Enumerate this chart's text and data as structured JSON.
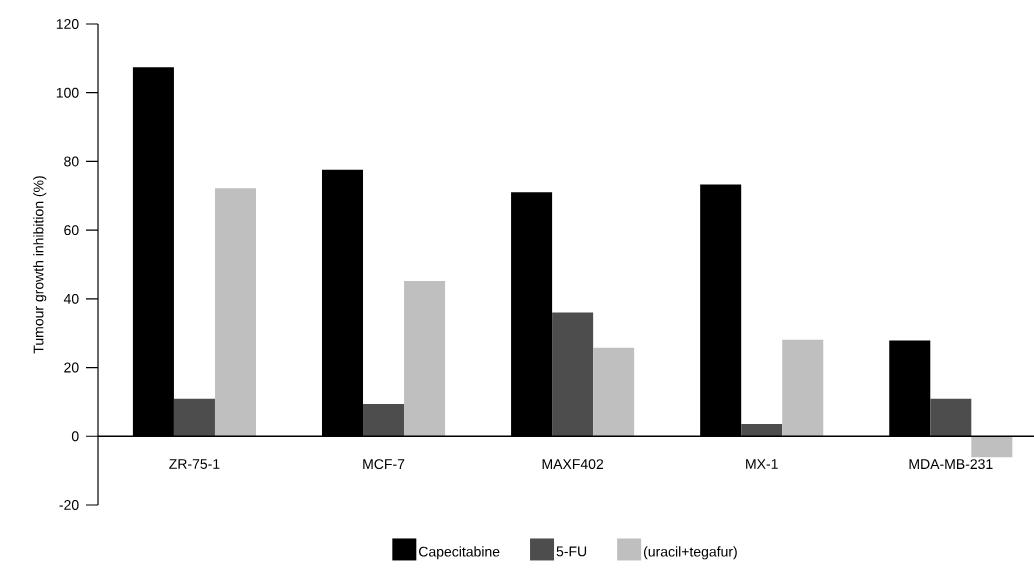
{
  "chart_data": {
    "type": "bar",
    "ylabel": "Tumour growth inhibition (%)",
    "categories": [
      "ZR-75-1",
      "MCF-7",
      "MAXF402",
      "MX-1",
      "MDA-MB-231"
    ],
    "series": [
      {
        "name": "Capecitabine",
        "color": "#000000",
        "values": [
          107.4,
          77.6,
          71.0,
          73.3,
          27.9
        ]
      },
      {
        "name": "5-FU",
        "color": "#4d4d4d",
        "values": [
          10.9,
          9.4,
          36.0,
          3.6,
          10.9
        ]
      },
      {
        "name": "(uracil+tegafur)",
        "color": "#bfbfbf",
        "values": [
          72.2,
          45.2,
          25.8,
          28.1,
          -6.1
        ]
      }
    ],
    "ylim": [
      -20,
      120
    ],
    "yticks": [
      -20,
      0,
      20,
      40,
      60,
      80,
      100,
      120
    ],
    "grid": false,
    "legend": "bottom"
  }
}
